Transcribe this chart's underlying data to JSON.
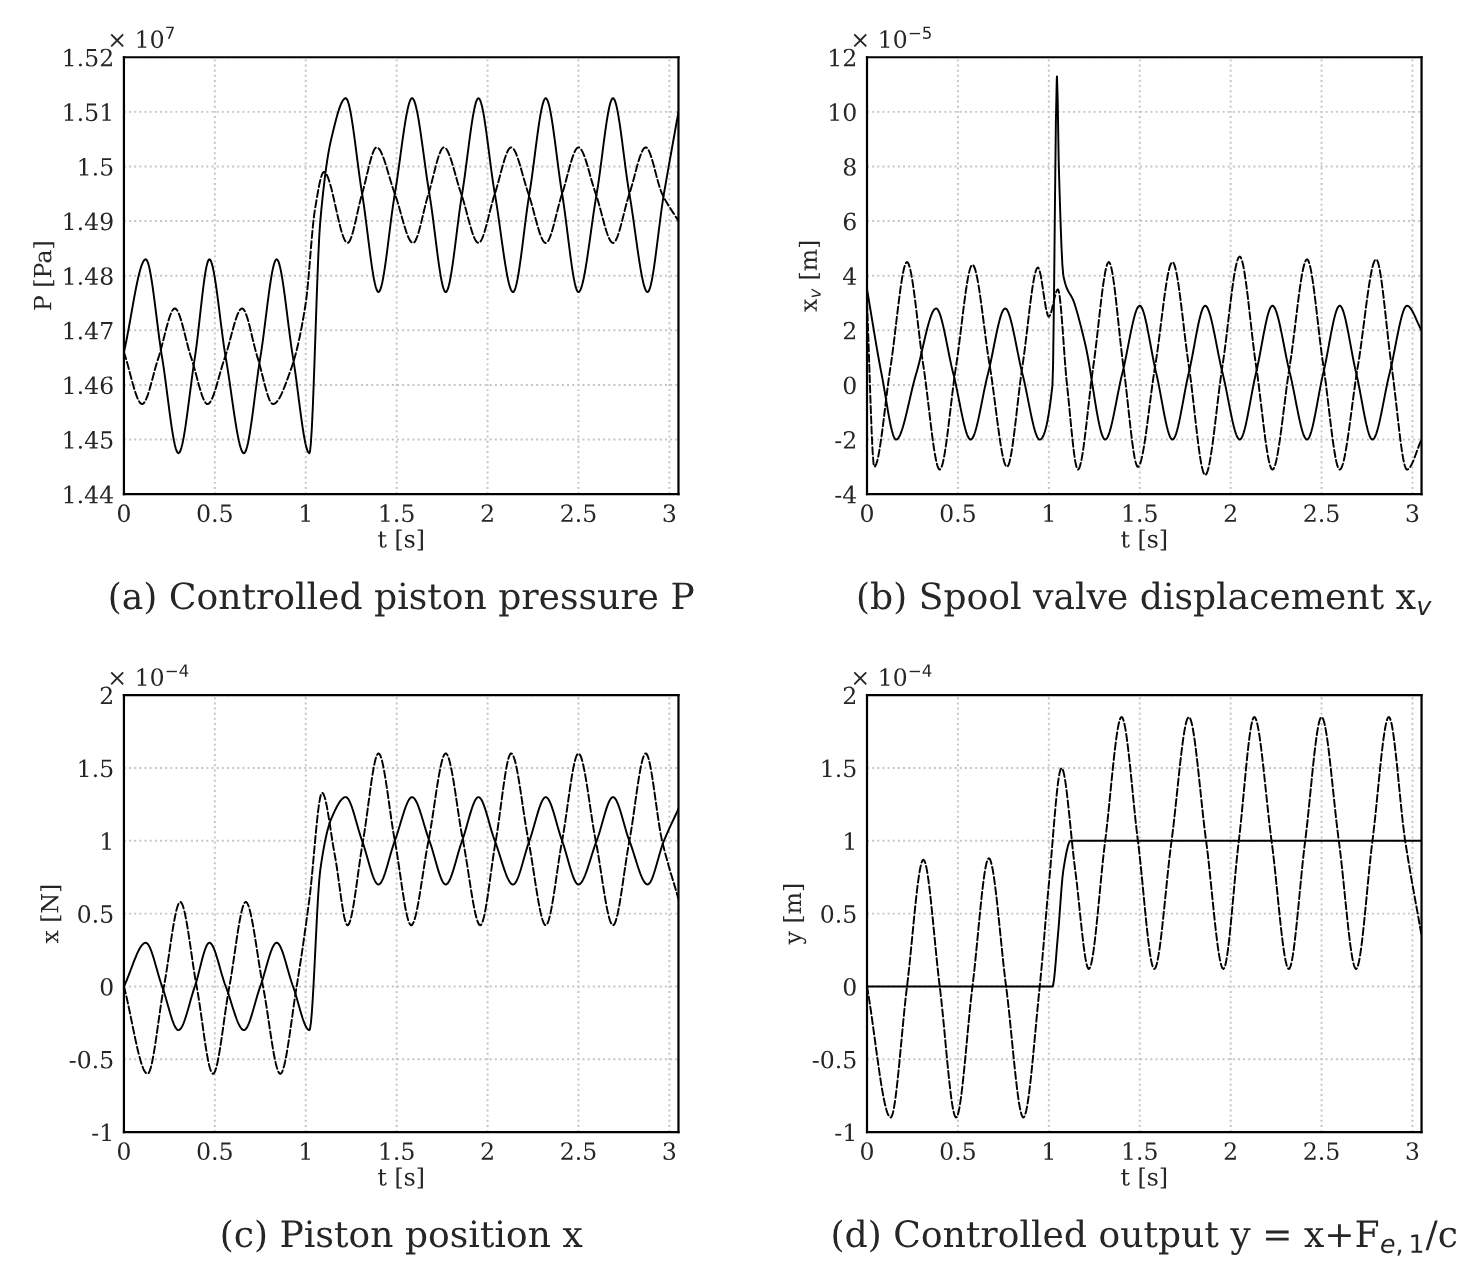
{
  "chart_data": [
    {
      "type": "line",
      "title": "(a) Controlled piston pressure P",
      "xlabel": "t [s]",
      "ylabel": "P [Pa]",
      "annotations": [
        "× 10$^{7}$"
      ],
      "xlim": [
        0,
        3.05
      ],
      "xticks": [
        0,
        0.5,
        1,
        1.5,
        2,
        2.5,
        3
      ],
      "ylim": [
        1.44,
        1.52
      ],
      "yticks": [
        1.44,
        1.45,
        1.46,
        1.47,
        1.48,
        1.49,
        1.5,
        1.51,
        1.52
      ],
      "grid": true,
      "legend": false,
      "series": [
        {
          "color": "#000000",
          "line_style": "solid",
          "x": [
            0,
            0.12,
            0.21,
            0.3,
            0.39,
            0.47,
            0.56,
            0.66,
            0.75,
            0.84,
            0.93,
            1.02,
            1.08,
            1.14,
            1.22,
            1.31,
            1.4,
            1.49,
            1.585,
            1.68,
            1.77,
            1.86,
            1.95,
            2.04,
            2.14,
            2.23,
            2.32,
            2.41,
            2.5,
            2.6,
            2.69,
            2.78,
            2.88,
            2.97,
            3.05
          ],
          "values": [
            1.466,
            1.483,
            1.465,
            1.4475,
            1.465,
            1.483,
            1.465,
            1.4475,
            1.465,
            1.483,
            1.465,
            1.4475,
            1.49,
            1.505,
            1.5125,
            1.495,
            1.477,
            1.495,
            1.5125,
            1.495,
            1.477,
            1.495,
            1.5125,
            1.495,
            1.477,
            1.495,
            1.5125,
            1.495,
            1.477,
            1.495,
            1.5125,
            1.495,
            1.477,
            1.495,
            1.51
          ]
        },
        {
          "color": "#000000",
          "line_style": "dashed",
          "x": [
            0,
            0.1,
            0.19,
            0.28,
            0.37,
            0.46,
            0.555,
            0.65,
            0.735,
            0.82,
            0.92,
            1.0,
            1.05,
            1.1,
            1.23,
            1.31,
            1.39,
            1.49,
            1.59,
            1.675,
            1.76,
            1.855,
            1.95,
            2.04,
            2.13,
            2.225,
            2.32,
            2.41,
            2.5,
            2.595,
            2.69,
            2.78,
            2.87,
            2.96,
            3.05
          ],
          "values": [
            1.466,
            1.4565,
            1.465,
            1.474,
            1.465,
            1.4565,
            1.465,
            1.474,
            1.465,
            1.4565,
            1.463,
            1.475,
            1.492,
            1.499,
            1.486,
            1.495,
            1.5035,
            1.495,
            1.486,
            1.495,
            1.5035,
            1.495,
            1.486,
            1.495,
            1.5035,
            1.495,
            1.486,
            1.495,
            1.5035,
            1.495,
            1.486,
            1.495,
            1.5035,
            1.495,
            1.49
          ]
        }
      ]
    },
    {
      "type": "line",
      "title": "(b) Spool valve displacement x$_{v}$",
      "xlabel": "t [s]",
      "ylabel": "x$_{v}$ [m]",
      "annotations": [
        "× 10$^{−5}$"
      ],
      "xlim": [
        0,
        3.05
      ],
      "xticks": [
        0,
        0.5,
        1,
        1.5,
        2,
        2.5,
        3
      ],
      "ylim": [
        -4,
        12
      ],
      "yticks": [
        -4,
        -2,
        0,
        2,
        4,
        6,
        8,
        10,
        12
      ],
      "grid": true,
      "legend": false,
      "series": [
        {
          "color": "#000000",
          "line_style": "solid",
          "x": [
            0,
            0.08,
            0.16,
            0.27,
            0.38,
            0.475,
            0.57,
            0.665,
            0.76,
            0.855,
            0.95,
            1.02,
            1.045,
            1.055,
            1.08,
            1.14,
            1.2,
            1.31,
            1.405,
            1.5,
            1.59,
            1.68,
            1.77,
            1.86,
            1.955,
            2.05,
            2.14,
            2.23,
            2.325,
            2.42,
            2.51,
            2.6,
            2.69,
            2.78,
            2.875,
            2.97,
            3.05
          ],
          "values": [
            3.5,
            0.4,
            -2,
            0.4,
            2.8,
            0.4,
            -2,
            0.4,
            2.8,
            0.4,
            -2,
            0,
            11.3,
            8,
            4,
            3,
            1.5,
            -2,
            0.45,
            2.9,
            0.45,
            -2,
            0.45,
            2.9,
            0.45,
            -2,
            0.45,
            2.9,
            0.45,
            -2,
            0.45,
            2.9,
            0.45,
            -2,
            0.45,
            2.9,
            2
          ]
        },
        {
          "color": "#000000",
          "line_style": "dashed",
          "x": [
            0,
            0.04,
            0.13,
            0.22,
            0.31,
            0.4,
            0.49,
            0.58,
            0.675,
            0.77,
            0.855,
            0.94,
            1.0,
            1.05,
            1.1,
            1.16,
            1.245,
            1.33,
            1.41,
            1.49,
            1.585,
            1.68,
            1.77,
            1.86,
            1.955,
            2.05,
            2.14,
            2.23,
            2.325,
            2.42,
            2.51,
            2.6,
            2.7,
            2.8,
            2.885,
            2.97,
            3.05
          ],
          "values": [
            3,
            -3,
            0.7,
            4.5,
            0.7,
            -3.1,
            0.7,
            4.4,
            0.7,
            -3,
            0.7,
            4.3,
            2.5,
            3.5,
            0,
            -3.1,
            0.7,
            4.5,
            0.7,
            -3,
            0.7,
            4.5,
            0.7,
            -3.3,
            0.7,
            4.7,
            0.7,
            -3.1,
            0.7,
            4.6,
            0.7,
            -3.1,
            0.7,
            4.6,
            0.7,
            -3.1,
            -2
          ]
        }
      ]
    },
    {
      "type": "line",
      "title": "(c) Piston position x",
      "xlabel": "t [s]",
      "ylabel": "x [N]",
      "annotations": [
        "× 10$^{−4}$"
      ],
      "xlim": [
        0,
        3.05
      ],
      "xticks": [
        0,
        0.5,
        1,
        1.5,
        2,
        2.5,
        3
      ],
      "ylim": [
        -1,
        2
      ],
      "yticks": [
        -1,
        -0.5,
        0,
        0.5,
        1,
        1.5,
        2
      ],
      "grid": true,
      "legend": false,
      "series": [
        {
          "color": "#000000",
          "line_style": "solid",
          "x": [
            0,
            0.12,
            0.21,
            0.3,
            0.39,
            0.47,
            0.56,
            0.66,
            0.75,
            0.84,
            0.93,
            1.02,
            1.08,
            1.14,
            1.22,
            1.31,
            1.4,
            1.49,
            1.585,
            1.68,
            1.77,
            1.86,
            1.95,
            2.04,
            2.14,
            2.23,
            2.32,
            2.41,
            2.5,
            2.6,
            2.69,
            2.78,
            2.88,
            2.97,
            3.05
          ],
          "values": [
            0,
            0.3,
            0,
            -0.3,
            0,
            0.3,
            0,
            -0.3,
            0,
            0.3,
            0,
            -0.3,
            0.8,
            1.15,
            1.3,
            1.0,
            0.7,
            1.0,
            1.3,
            1.0,
            0.7,
            1.0,
            1.3,
            1.0,
            0.7,
            1.0,
            1.3,
            1.0,
            0.7,
            1.0,
            1.3,
            1.0,
            0.7,
            1.0,
            1.22
          ]
        },
        {
          "color": "#000000",
          "line_style": "dashed",
          "x": [
            0,
            0.13,
            0.22,
            0.31,
            0.4,
            0.49,
            0.58,
            0.67,
            0.765,
            0.86,
            0.95,
            1.02,
            1.09,
            1.16,
            1.23,
            1.315,
            1.4,
            1.49,
            1.58,
            1.675,
            1.77,
            1.865,
            1.96,
            2.045,
            2.13,
            2.225,
            2.32,
            2.41,
            2.5,
            2.595,
            2.69,
            2.78,
            2.87,
            2.96,
            3.05
          ],
          "values": [
            0,
            -0.6,
            0,
            0.58,
            0,
            -0.6,
            0,
            0.58,
            0,
            -0.6,
            0,
            0.6,
            1.33,
            0.9,
            0.42,
            1.0,
            1.6,
            1.0,
            0.42,
            1.0,
            1.6,
            1.0,
            0.42,
            1.0,
            1.6,
            1.0,
            0.42,
            1.0,
            1.6,
            1.0,
            0.42,
            1.0,
            1.6,
            1.0,
            0.6
          ]
        }
      ]
    },
    {
      "type": "line",
      "title": "(d) Controlled output y = x+F$_{e,1}$/c",
      "xlabel": "t [s]",
      "ylabel": "y [m]",
      "annotations": [
        "× 10$^{−4}$"
      ],
      "xlim": [
        0,
        3.05
      ],
      "xticks": [
        0,
        0.5,
        1,
        1.5,
        2,
        2.5,
        3
      ],
      "ylim": [
        -1,
        2
      ],
      "yticks": [
        -1,
        -0.5,
        0,
        0.5,
        1,
        1.5,
        2
      ],
      "grid": true,
      "legend": false,
      "series": [
        {
          "color": "#000000",
          "line_style": "solid",
          "x": [
            0,
            1.02,
            1.05,
            1.08,
            1.12,
            3.05
          ],
          "values": [
            0,
            0,
            0.35,
            0.8,
            1.0,
            1.0
          ]
        },
        {
          "color": "#000000",
          "line_style": "dashed",
          "x": [
            0,
            0.13,
            0.22,
            0.31,
            0.4,
            0.49,
            0.58,
            0.67,
            0.765,
            0.86,
            0.95,
            1.0,
            1.07,
            1.145,
            1.22,
            1.31,
            1.4,
            1.49,
            1.58,
            1.675,
            1.77,
            1.865,
            1.96,
            2.045,
            2.13,
            2.225,
            2.32,
            2.41,
            2.5,
            2.595,
            2.69,
            2.78,
            2.87,
            2.96,
            3.05
          ],
          "values": [
            0,
            -0.9,
            0,
            0.87,
            0,
            -0.9,
            0,
            0.88,
            0,
            -0.9,
            0,
            0.7,
            1.5,
            0.8,
            0.12,
            1.0,
            1.85,
            1.0,
            0.12,
            1.0,
            1.85,
            1.0,
            0.12,
            1.0,
            1.85,
            1.0,
            0.12,
            1.0,
            1.85,
            1.0,
            0.12,
            1.0,
            1.85,
            1.0,
            0.35
          ]
        }
      ]
    }
  ]
}
